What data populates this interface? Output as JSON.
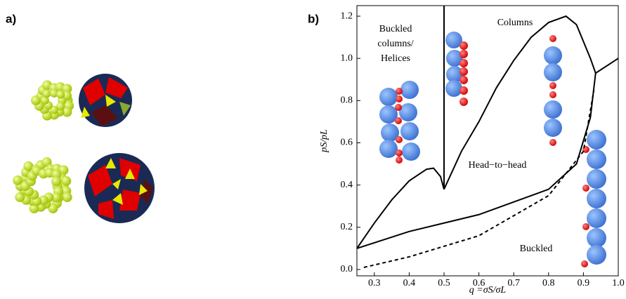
{
  "panel_labels": [
    "a)",
    "b)"
  ],
  "chart_data": {
    "type": "line",
    "xlabel": "q =σS/σL",
    "ylabel": "pS/pL",
    "xlim": [
      0.25,
      1.0
    ],
    "ylim": [
      -0.03,
      1.25
    ],
    "xticks": [
      0.3,
      0.4,
      0.5,
      0.6,
      0.7,
      0.8,
      0.9,
      {
        "value": 1,
        "label": "1.0"
      }
    ],
    "yticks": [
      {
        "value": 0,
        "label": "0.0"
      },
      0.2,
      0.4,
      0.6,
      0.8,
      {
        "value": 1,
        "label": "1.0"
      },
      1.2
    ],
    "annotations": [
      "Buckled",
      "columns/",
      "Helices",
      "Columns",
      "Head−to−head",
      "Buckled"
    ],
    "series": [
      {
        "color": "#000000",
        "dashed": false,
        "x": [
          0.25,
          0.3,
          0.35,
          0.4,
          0.45,
          0.47,
          0.49,
          0.5
        ],
        "values": [
          0.1,
          0.22,
          0.33,
          0.42,
          0.475,
          0.48,
          0.44,
          0.38
        ]
      },
      {
        "color": "#000000",
        "dashed": false,
        "x": [
          0.5,
          0.5
        ],
        "values": [
          0.38,
          1.25
        ]
      },
      {
        "color": "#000000",
        "dashed": false,
        "x": [
          0.5,
          0.55,
          0.6,
          0.65,
          0.7,
          0.75,
          0.8,
          0.85,
          0.88,
          0.9,
          0.92,
          0.935,
          1.0
        ],
        "values": [
          0.38,
          0.56,
          0.7,
          0.86,
          0.99,
          1.1,
          1.17,
          1.2,
          1.16,
          1.08,
          1.0,
          0.93,
          1.0
        ]
      },
      {
        "color": "#000000",
        "dashed": false,
        "x": [
          0.25,
          0.4,
          0.6,
          0.8,
          0.88,
          0.92,
          0.935
        ],
        "values": [
          0.1,
          0.18,
          0.26,
          0.38,
          0.5,
          0.72,
          0.93
        ]
      },
      {
        "color": "#000000",
        "dashed": true,
        "x": [
          0.27,
          0.4,
          0.6,
          0.8,
          0.9,
          0.93
        ],
        "values": [
          0.01,
          0.06,
          0.16,
          0.35,
          0.56,
          0.85
        ]
      }
    ]
  }
}
